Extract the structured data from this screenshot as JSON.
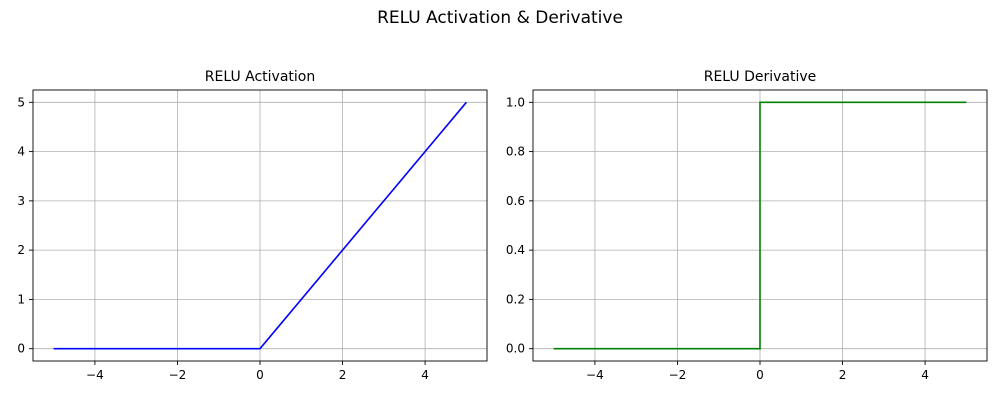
{
  "figure": {
    "title": "RELU Activation & Derivative"
  },
  "chart_data": [
    {
      "type": "line",
      "title": "RELU Activation",
      "xlabel": "",
      "ylabel": "",
      "xlim": [
        -5.5,
        5.5
      ],
      "ylim": [
        -0.25,
        5.25
      ],
      "xticks": [
        -4,
        -2,
        0,
        2,
        4
      ],
      "xtick_labels": [
        "−4",
        "−2",
        "0",
        "2",
        "4"
      ],
      "yticks": [
        0,
        1,
        2,
        3,
        4,
        5
      ],
      "ytick_labels": [
        "0",
        "1",
        "2",
        "3",
        "4",
        "5"
      ],
      "grid": true,
      "series": [
        {
          "color": "#0000ff",
          "x": [
            -5,
            0,
            5
          ],
          "y": [
            0,
            0,
            5
          ]
        }
      ]
    },
    {
      "type": "line",
      "title": "RELU Derivative",
      "xlabel": "",
      "ylabel": "",
      "xlim": [
        -5.5,
        5.5
      ],
      "ylim": [
        -0.05,
        1.05
      ],
      "xticks": [
        -4,
        -2,
        0,
        2,
        4
      ],
      "xtick_labels": [
        "−4",
        "−2",
        "0",
        "2",
        "4"
      ],
      "yticks": [
        0.0,
        0.2,
        0.4,
        0.6,
        0.8,
        1.0
      ],
      "ytick_labels": [
        "0.0",
        "0.2",
        "0.4",
        "0.6",
        "0.8",
        "1.0"
      ],
      "grid": true,
      "series": [
        {
          "color": "#008000",
          "x": [
            -5,
            0,
            0,
            5
          ],
          "y": [
            0,
            0,
            1,
            1
          ]
        }
      ]
    }
  ]
}
